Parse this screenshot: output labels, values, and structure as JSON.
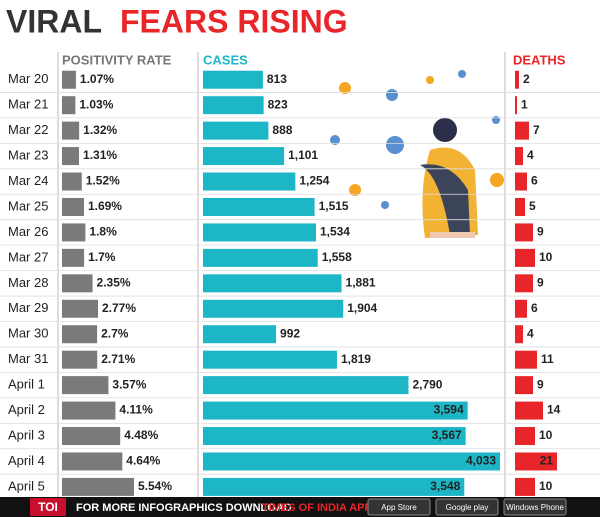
{
  "header": {
    "title_lead": "VIRAL",
    "title_highlight": "FEARS RISING"
  },
  "chart_data": [
    {
      "type": "hbar",
      "title": "POSITIVITY RATE",
      "color": "#7a7a7a",
      "categories": [
        "Mar 20",
        "Mar 21",
        "Mar 22",
        "Mar 23",
        "Mar 24",
        "Mar 25",
        "Mar 26",
        "Mar 27",
        "Mar 28",
        "Mar 29",
        "Mar 30",
        "Mar 31",
        "April 1",
        "April 2",
        "April 3",
        "April 4",
        "April 5"
      ],
      "values": [
        1.07,
        1.03,
        1.32,
        1.31,
        1.52,
        1.69,
        1.8,
        1.7,
        2.35,
        2.77,
        2.7,
        2.71,
        3.57,
        4.11,
        4.48,
        4.64,
        5.54
      ],
      "value_labels": [
        "1.07%",
        "1.03%",
        "1.32%",
        "1.31%",
        "1.52%",
        "1.69%",
        "1.8%",
        "1.7%",
        "2.35%",
        "2.77%",
        "2.7%",
        "2.71%",
        "3.57%",
        "4.11%",
        "4.48%",
        "4.64%",
        "5.54%"
      ]
    },
    {
      "type": "hbar",
      "title": "CASES",
      "color": "#1cb6c6",
      "values": [
        813,
        823,
        888,
        1101,
        1254,
        1515,
        1534,
        1558,
        1881,
        1904,
        992,
        1819,
        2790,
        3594,
        3567,
        4033,
        3548
      ],
      "value_labels": [
        "813",
        "823",
        "888",
        "1,101",
        "1,254",
        "1,515",
        "1,534",
        "1,558",
        "1,881",
        "1,904",
        "992",
        "1,819",
        "2,790",
        "3,594",
        "3,567",
        "4,033",
        "3,548"
      ]
    },
    {
      "type": "hbar",
      "title": "DEATHS",
      "color": "#e8262a",
      "values": [
        2,
        1,
        7,
        4,
        6,
        5,
        9,
        10,
        9,
        6,
        4,
        11,
        9,
        14,
        10,
        21,
        10
      ]
    }
  ],
  "footer": {
    "brand": "TOI",
    "text": "FOR MORE INFOGRAPHICS DOWNLOAD",
    "app": "TIMES OF INDIA APP",
    "badges": [
      "App Store",
      "Google play",
      "Windows Phone"
    ]
  }
}
